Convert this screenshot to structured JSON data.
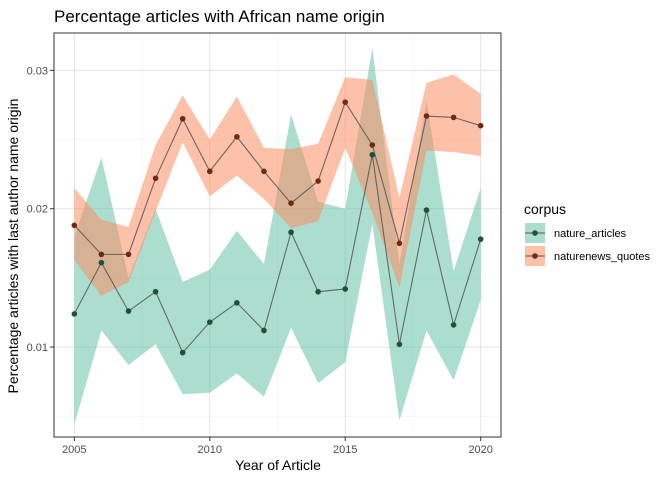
{
  "chart_data": {
    "type": "line",
    "title": "Percentage articles with African name origin",
    "xlabel": "Year of Article",
    "ylabel": "Percentage articles with last author name origin",
    "x": [
      2005,
      2006,
      2007,
      2008,
      2009,
      2010,
      2011,
      2012,
      2013,
      2014,
      2015,
      2016,
      2017,
      2018,
      2019,
      2020
    ],
    "xlim": [
      2004.25,
      2020.75
    ],
    "ylim": [
      0.0035,
      0.0327
    ],
    "x_ticks": [
      2005,
      2010,
      2015,
      2020
    ],
    "x_tick_labels": [
      "2005",
      "2010",
      "2015",
      "2020"
    ],
    "y_ticks": [
      0.01,
      0.02,
      0.03
    ],
    "y_tick_labels": [
      "0.01",
      "0.02",
      "0.03"
    ],
    "grid": true,
    "legend": {
      "title": "corpus",
      "position": "right",
      "entries": [
        "nature_articles",
        "naturenews_quotes"
      ]
    },
    "series": [
      {
        "name": "nature_articles",
        "color": "#66c2a5",
        "point_color": "#1f4f3d",
        "values": [
          0.0124,
          0.0161,
          0.0126,
          0.014,
          0.0096,
          0.0118,
          0.0132,
          0.0112,
          0.0183,
          0.014,
          0.0142,
          0.0239,
          0.0102,
          0.0199,
          0.0116,
          0.0178
        ],
        "lower": [
          0.0044,
          0.0112,
          0.0087,
          0.0102,
          0.0066,
          0.0067,
          0.0081,
          0.0064,
          0.0114,
          0.0074,
          0.0089,
          0.0189,
          0.0047,
          0.0112,
          0.0076,
          0.0134
        ],
        "upper": [
          0.018,
          0.0237,
          0.015,
          0.02,
          0.0147,
          0.0156,
          0.0184,
          0.016,
          0.0268,
          0.0205,
          0.02,
          0.0316,
          0.016,
          0.0278,
          0.0155,
          0.0215
        ]
      },
      {
        "name": "naturenews_quotes",
        "color": "#fc8d62",
        "point_color": "#6e2a16",
        "values": [
          0.0188,
          0.0167,
          0.0167,
          0.0222,
          0.0265,
          0.0227,
          0.0252,
          0.0227,
          0.0204,
          0.022,
          0.0277,
          0.0246,
          0.0175,
          0.0267,
          0.0266,
          0.026
        ],
        "lower": [
          0.0163,
          0.0137,
          0.0147,
          0.0198,
          0.0248,
          0.0209,
          0.0224,
          0.0207,
          0.0186,
          0.0191,
          0.0244,
          0.0197,
          0.0143,
          0.0242,
          0.0241,
          0.0238
        ],
        "upper": [
          0.0215,
          0.0192,
          0.0187,
          0.0246,
          0.0282,
          0.025,
          0.0281,
          0.0244,
          0.0243,
          0.0247,
          0.0295,
          0.0293,
          0.0208,
          0.0291,
          0.0297,
          0.0283
        ]
      }
    ]
  }
}
